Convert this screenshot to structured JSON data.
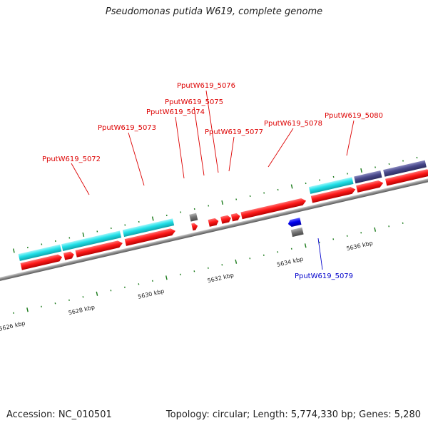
{
  "title": "Pseudomonas putida W619, complete genome",
  "footer": {
    "accession": "Accession: NC_010501",
    "summary": "Topology: circular; Length: 5,774,330 bp; Genes: 5,280"
  },
  "colors": {
    "forward_cds": "#ff1a1a",
    "reverse_cds": "#0000ee",
    "forward_gene": "#22e0e8",
    "other_feature": "#4a4a8c",
    "pseudo": "#777777",
    "backbone": "#888888",
    "tick": "#1a7a1a",
    "label_forward": "#dd0000",
    "label_reverse": "#0000cc"
  },
  "axis_labels": [
    "5626 kbp",
    "5628 kbp",
    "5630 kbp",
    "5632 kbp",
    "5634 kbp",
    "5636 kbp"
  ],
  "gene_labels": [
    {
      "id": "g5072",
      "text": "PputW619_5072",
      "strand": "forward"
    },
    {
      "id": "g5073",
      "text": "PputW619_5073",
      "strand": "forward"
    },
    {
      "id": "g5074",
      "text": "PputW619_5074",
      "strand": "forward"
    },
    {
      "id": "g5075",
      "text": "PputW619_5075",
      "strand": "forward"
    },
    {
      "id": "g5076",
      "text": "PputW619_5076",
      "strand": "forward"
    },
    {
      "id": "g5077",
      "text": "PputW619_5077",
      "strand": "forward"
    },
    {
      "id": "g5078",
      "text": "PputW619_5078",
      "strand": "forward"
    },
    {
      "id": "g5079",
      "text": "PputW619_5079",
      "strand": "reverse"
    },
    {
      "id": "g5080",
      "text": "PputW619_5080",
      "strand": "forward"
    }
  ]
}
